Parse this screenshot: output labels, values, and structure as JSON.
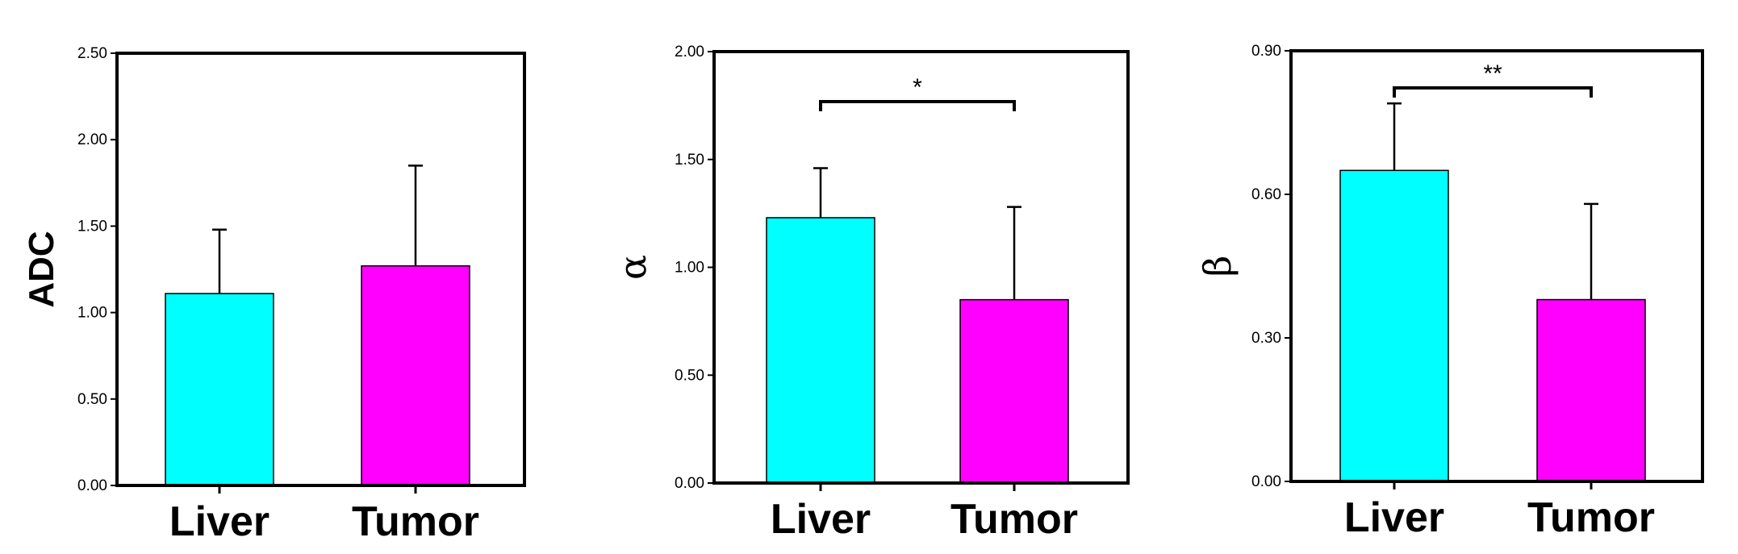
{
  "chart_data": [
    {
      "type": "bar",
      "ylabel": "ADC",
      "ylim": [
        0,
        2.5
      ],
      "yticks": [
        "0.00",
        "0.50",
        "1.00",
        "1.50",
        "2.00",
        "2.50"
      ],
      "categories": [
        "Liver",
        "Tumor"
      ],
      "values": [
        1.11,
        1.27
      ],
      "errors": [
        0.37,
        0.58
      ],
      "colors": [
        "#00FFFF",
        "#FF00FF"
      ],
      "significance": null
    },
    {
      "type": "bar",
      "ylabel": "α",
      "ylim": [
        0,
        2.0
      ],
      "yticks": [
        "0.00",
        "0.50",
        "1.00",
        "1.50",
        "2.00"
      ],
      "categories": [
        "Liver",
        "Tumor"
      ],
      "values": [
        1.23,
        0.85
      ],
      "errors": [
        0.23,
        0.43
      ],
      "colors": [
        "#00FFFF",
        "#FF00FF"
      ],
      "significance": "*"
    },
    {
      "type": "bar",
      "ylabel": "β",
      "ylim": [
        0,
        0.9
      ],
      "yticks": [
        "0.00",
        "0.30",
        "0.60",
        "0.90"
      ],
      "categories": [
        "Liver",
        "Tumor"
      ],
      "values": [
        0.65,
        0.38
      ],
      "errors": [
        0.14,
        0.2
      ],
      "colors": [
        "#00FFFF",
        "#FF00FF"
      ],
      "significance": "**"
    }
  ]
}
